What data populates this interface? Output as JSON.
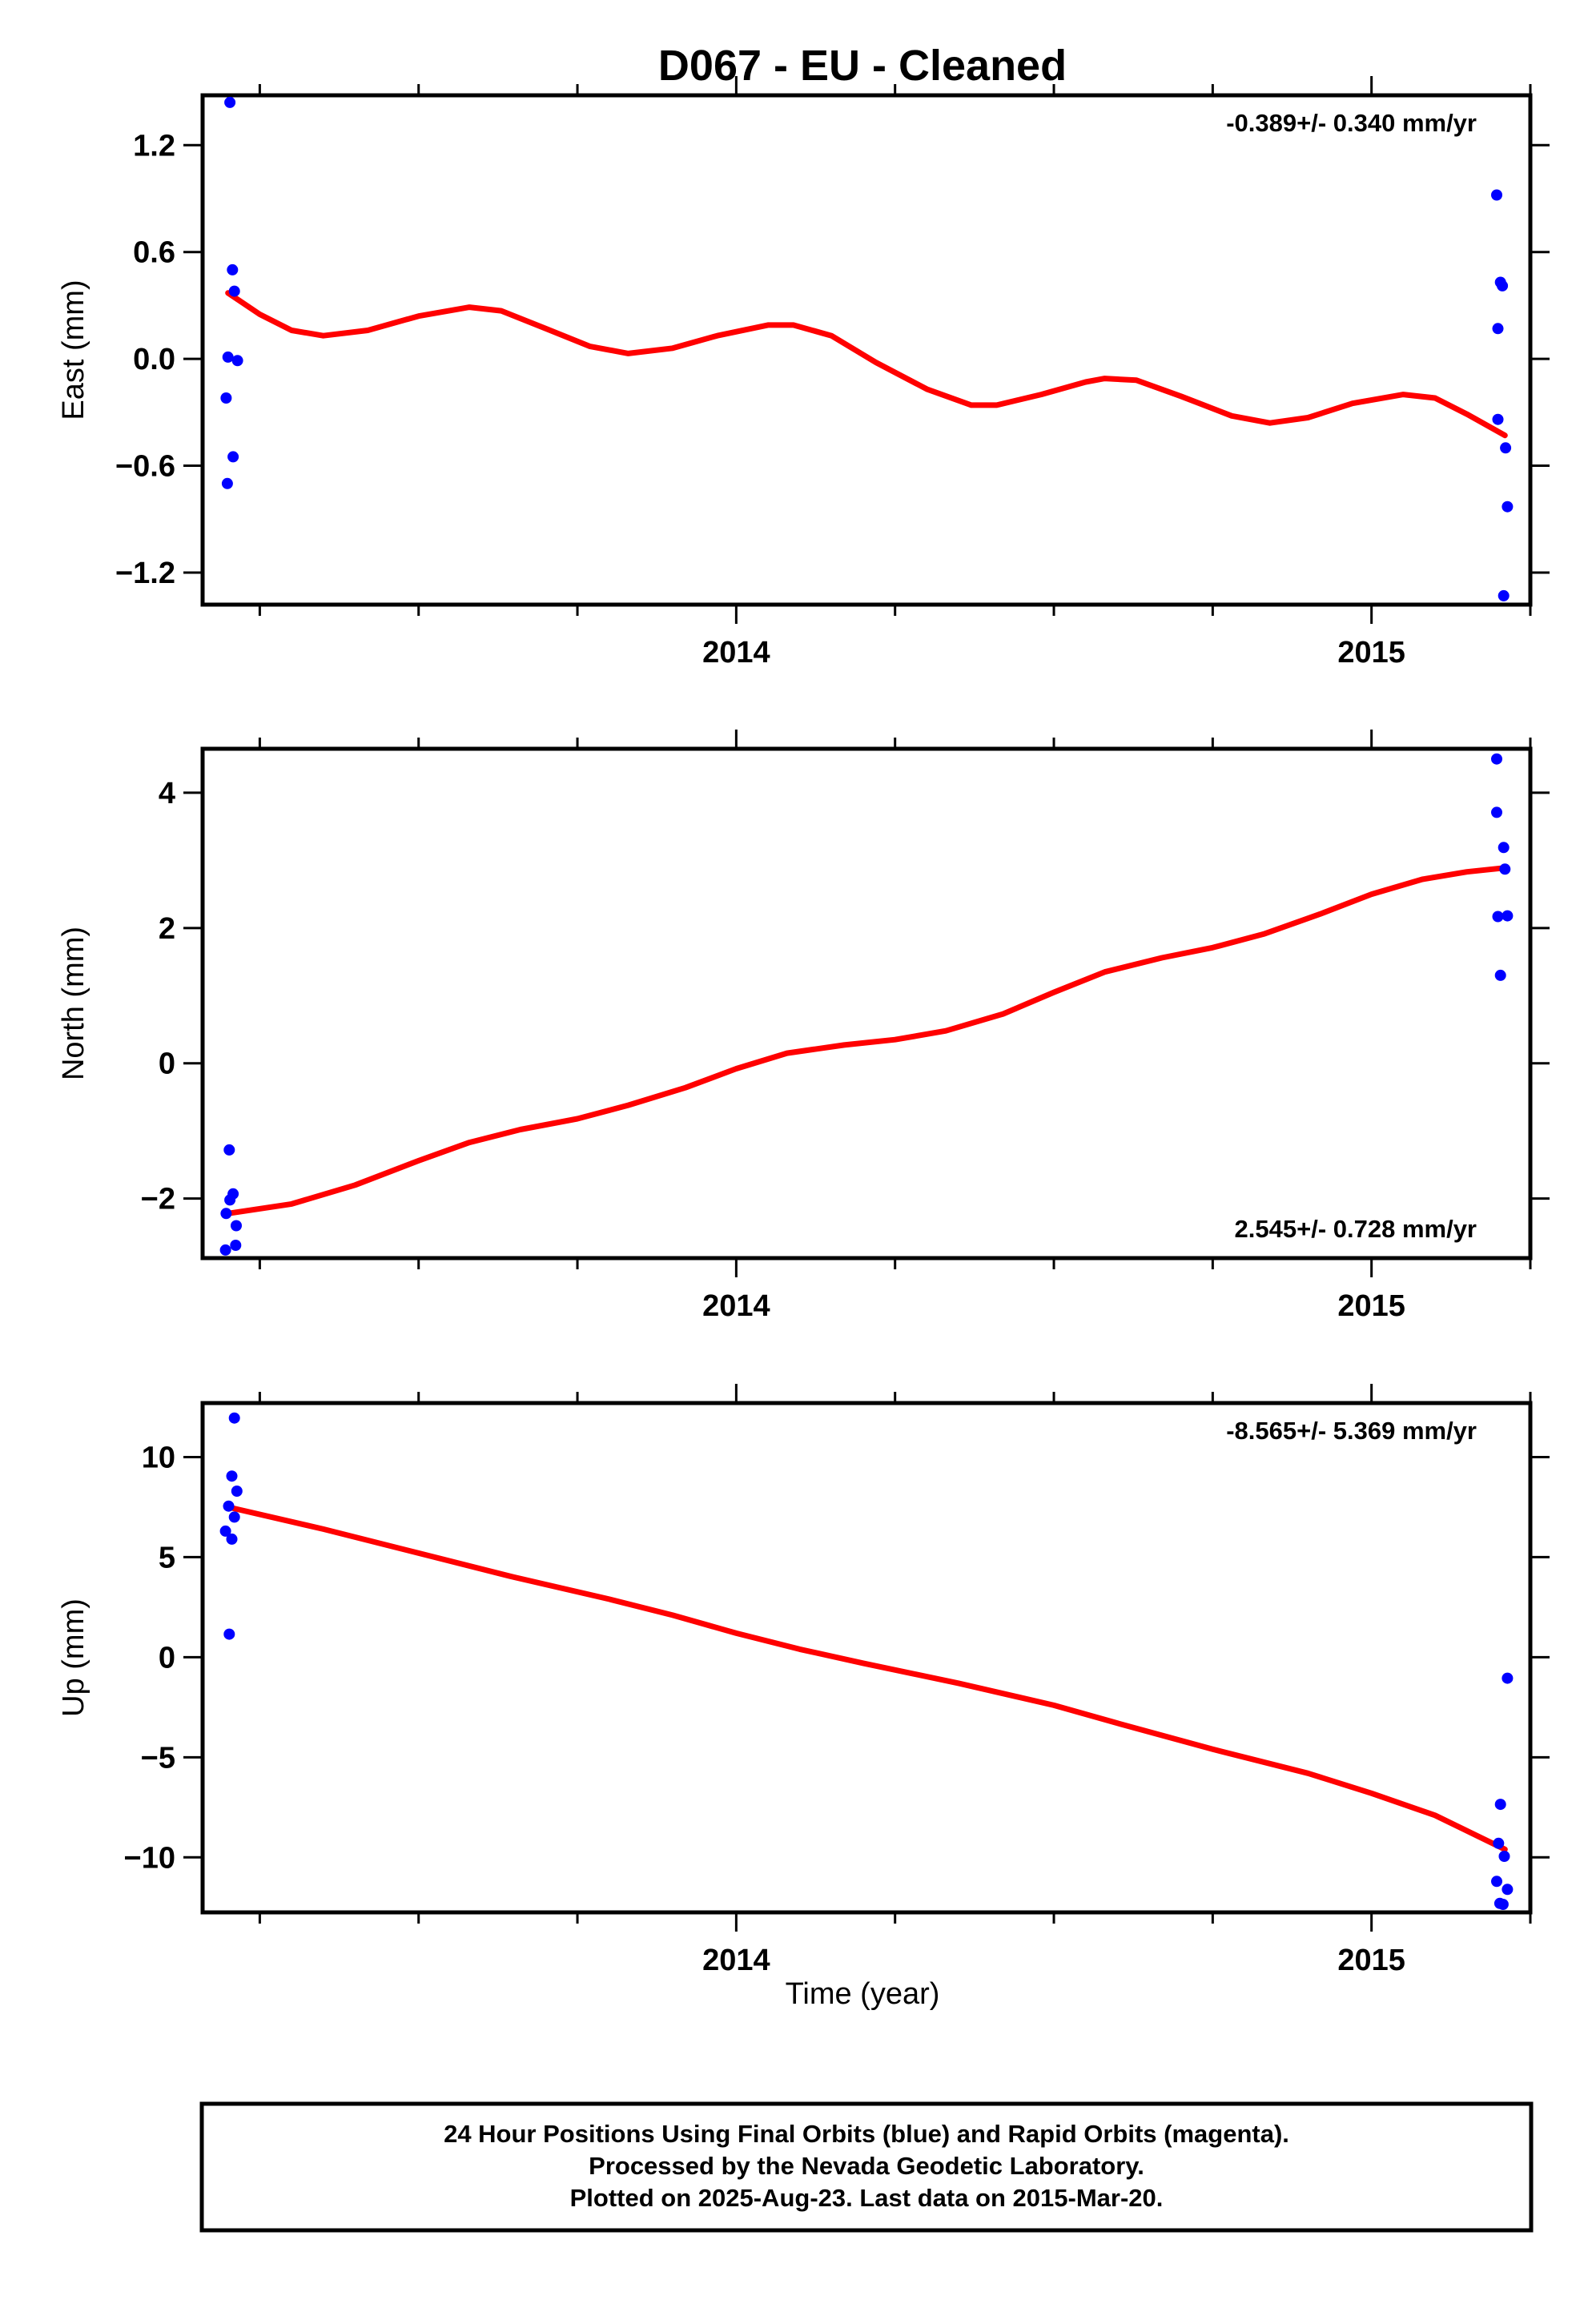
{
  "chart_data": {
    "type": "scatter",
    "title": "D067  - EU - Cleaned",
    "xlabel": "Time (year)",
    "xlim": [
      2013.16,
      2015.25
    ],
    "x_ticks": [
      2014,
      2015
    ],
    "panels": [
      {
        "name": "east",
        "ylabel": "East (mm)",
        "ylim": [
          -1.38,
          1.48
        ],
        "y_ticks": [
          -1.2,
          -0.6,
          0.0,
          0.6,
          1.2
        ],
        "y_tick_labels": [
          "−1.2",
          "−0.6",
          "0.0",
          "0.6",
          "1.2"
        ],
        "rate_text": "-0.389+/- 0.340 mm/yr",
        "rate_position": "top-right",
        "points_color": "#0000ff",
        "points": [
          [
            2013.203,
            1.44
          ],
          [
            2013.207,
            0.5
          ],
          [
            2013.21,
            0.38
          ],
          [
            2013.2,
            0.01
          ],
          [
            2013.215,
            -0.01
          ],
          [
            2013.197,
            -0.22
          ],
          [
            2013.208,
            -0.55
          ],
          [
            2013.199,
            -0.7
          ],
          [
            2015.197,
            0.92
          ],
          [
            2015.203,
            0.43
          ],
          [
            2015.206,
            0.41
          ],
          [
            2015.199,
            0.17
          ],
          [
            2015.199,
            -0.34
          ],
          [
            2015.211,
            -0.5
          ],
          [
            2015.214,
            -0.83
          ],
          [
            2015.208,
            -1.33
          ]
        ],
        "fit_color": "#ff0000",
        "fit": [
          [
            2013.2,
            0.37
          ],
          [
            2013.25,
            0.25
          ],
          [
            2013.3,
            0.16
          ],
          [
            2013.35,
            0.13
          ],
          [
            2013.42,
            0.16
          ],
          [
            2013.5,
            0.24
          ],
          [
            2013.58,
            0.29
          ],
          [
            2013.63,
            0.27
          ],
          [
            2013.7,
            0.17
          ],
          [
            2013.77,
            0.07
          ],
          [
            2013.83,
            0.03
          ],
          [
            2013.9,
            0.06
          ],
          [
            2013.97,
            0.13
          ],
          [
            2014.05,
            0.19
          ],
          [
            2014.09,
            0.19
          ],
          [
            2014.15,
            0.13
          ],
          [
            2014.22,
            -0.02
          ],
          [
            2014.3,
            -0.17
          ],
          [
            2014.37,
            -0.26
          ],
          [
            2014.41,
            -0.26
          ],
          [
            2014.48,
            -0.2
          ],
          [
            2014.55,
            -0.13
          ],
          [
            2014.58,
            -0.11
          ],
          [
            2014.63,
            -0.12
          ],
          [
            2014.7,
            -0.21
          ],
          [
            2014.78,
            -0.32
          ],
          [
            2014.84,
            -0.36
          ],
          [
            2014.9,
            -0.33
          ],
          [
            2014.97,
            -0.25
          ],
          [
            2015.05,
            -0.2
          ],
          [
            2015.1,
            -0.22
          ],
          [
            2015.15,
            -0.31
          ],
          [
            2015.21,
            -0.43
          ]
        ]
      },
      {
        "name": "north",
        "ylabel": "North (mm)",
        "ylim": [
          -2.88,
          4.65
        ],
        "y_ticks": [
          -2,
          0,
          2,
          4
        ],
        "y_tick_labels": [
          "−2",
          "0",
          "2",
          "4"
        ],
        "rate_text": "2.545+/- 0.728 mm/yr",
        "rate_position": "bottom-right",
        "points_color": "#0000ff",
        "points": [
          [
            2013.202,
            -1.28
          ],
          [
            2013.208,
            -1.93
          ],
          [
            2013.203,
            -2.02
          ],
          [
            2013.197,
            -2.22
          ],
          [
            2013.213,
            -2.4
          ],
          [
            2013.212,
            -2.69
          ],
          [
            2013.196,
            -2.76
          ],
          [
            2015.197,
            4.5
          ],
          [
            2015.197,
            3.71
          ],
          [
            2015.208,
            3.19
          ],
          [
            2015.21,
            2.87
          ],
          [
            2015.199,
            2.17
          ],
          [
            2015.214,
            2.18
          ],
          [
            2015.203,
            1.3
          ]
        ],
        "fit_color": "#ff0000",
        "fit": [
          [
            2013.2,
            -2.22
          ],
          [
            2013.3,
            -2.08
          ],
          [
            2013.4,
            -1.8
          ],
          [
            2013.5,
            -1.44
          ],
          [
            2013.58,
            -1.17
          ],
          [
            2013.66,
            -0.98
          ],
          [
            2013.75,
            -0.82
          ],
          [
            2013.83,
            -0.62
          ],
          [
            2013.92,
            -0.36
          ],
          [
            2014.0,
            -0.08
          ],
          [
            2014.08,
            0.15
          ],
          [
            2014.17,
            0.27
          ],
          [
            2014.25,
            0.35
          ],
          [
            2014.33,
            0.48
          ],
          [
            2014.42,
            0.73
          ],
          [
            2014.5,
            1.05
          ],
          [
            2014.58,
            1.35
          ],
          [
            2014.67,
            1.56
          ],
          [
            2014.75,
            1.71
          ],
          [
            2014.83,
            1.91
          ],
          [
            2014.92,
            2.21
          ],
          [
            2015.0,
            2.5
          ],
          [
            2015.08,
            2.72
          ],
          [
            2015.15,
            2.83
          ],
          [
            2015.21,
            2.89
          ]
        ]
      },
      {
        "name": "up",
        "ylabel": "Up (mm)",
        "ylim": [
          -12.75,
          12.7
        ],
        "y_ticks": [
          -10,
          -5,
          0,
          5,
          10
        ],
        "y_tick_labels": [
          "−10",
          "−5",
          "0",
          "5",
          "10"
        ],
        "rate_text": "-8.565+/- 5.369 mm/yr",
        "rate_position": "top-right",
        "points_color": "#0000ff",
        "points": [
          [
            2013.21,
            11.95
          ],
          [
            2013.206,
            9.05
          ],
          [
            2013.214,
            8.3
          ],
          [
            2013.201,
            7.55
          ],
          [
            2013.21,
            7.0
          ],
          [
            2013.196,
            6.3
          ],
          [
            2013.206,
            5.9
          ],
          [
            2013.202,
            1.15
          ],
          [
            2015.214,
            -1.05
          ],
          [
            2015.203,
            -7.35
          ],
          [
            2015.2,
            -9.3
          ],
          [
            2015.209,
            -9.95
          ],
          [
            2015.197,
            -11.2
          ],
          [
            2015.214,
            -11.6
          ],
          [
            2015.202,
            -12.3
          ],
          [
            2015.207,
            -12.35
          ]
        ],
        "fit_color": "#ff0000",
        "fit": [
          [
            2013.2,
            7.5
          ],
          [
            2013.35,
            6.4
          ],
          [
            2013.5,
            5.2
          ],
          [
            2013.65,
            4.0
          ],
          [
            2013.8,
            2.9
          ],
          [
            2013.9,
            2.1
          ],
          [
            2014.0,
            1.2
          ],
          [
            2014.1,
            0.4
          ],
          [
            2014.2,
            -0.3
          ],
          [
            2014.35,
            -1.3
          ],
          [
            2014.5,
            -2.4
          ],
          [
            2014.6,
            -3.3
          ],
          [
            2014.75,
            -4.6
          ],
          [
            2014.9,
            -5.8
          ],
          [
            2015.0,
            -6.8
          ],
          [
            2015.1,
            -7.9
          ],
          [
            2015.21,
            -9.6
          ]
        ]
      }
    ]
  },
  "footer": {
    "lines": [
      "24 Hour Positions Using Final Orbits (blue) and Rapid Orbits (magenta).",
      "Processed by the Nevada Geodetic Laboratory.",
      "Plotted on 2025-Aug-23. Last data on 2015-Mar-20."
    ]
  }
}
